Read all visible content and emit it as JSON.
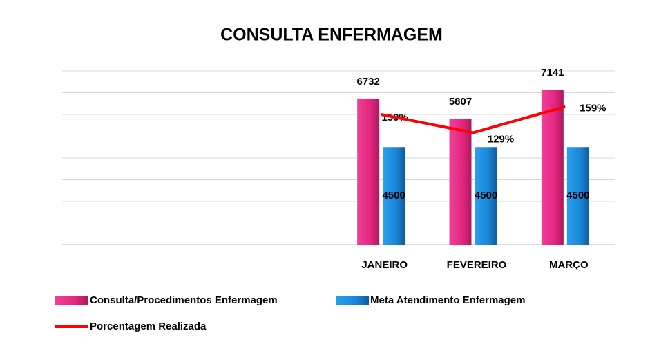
{
  "chart_data": {
    "type": "bar",
    "title": "CONSULTA ENFERMAGEM",
    "categories": [
      null,
      null,
      null,
      "JANEIRO",
      "FEVEREIRO",
      "MARÇO"
    ],
    "series": [
      {
        "name": "Consulta/Procedimentos Enfermagem",
        "color": "#e3267f",
        "values": [
          null,
          null,
          null,
          6732,
          5807,
          7141
        ]
      },
      {
        "name": "Meta Atendimento Enfermagem",
        "color": "#1a86d8",
        "values": [
          null,
          null,
          null,
          4500,
          4500,
          4500
        ]
      },
      {
        "name": "Porcentagem Realizada",
        "type": "line",
        "axis": "y2",
        "color": "#ff0000",
        "values": [
          null,
          null,
          null,
          150,
          129,
          159
        ],
        "value_labels": [
          null,
          null,
          null,
          "150%",
          "129%",
          "159%"
        ]
      }
    ],
    "ylim": [
      0,
      8000
    ],
    "yticks": [
      0,
      1000,
      2000,
      3000,
      4000,
      5000,
      6000,
      7000,
      8000
    ],
    "y2lim": [
      0,
      200
    ],
    "grid": true,
    "legend": "bottom"
  }
}
